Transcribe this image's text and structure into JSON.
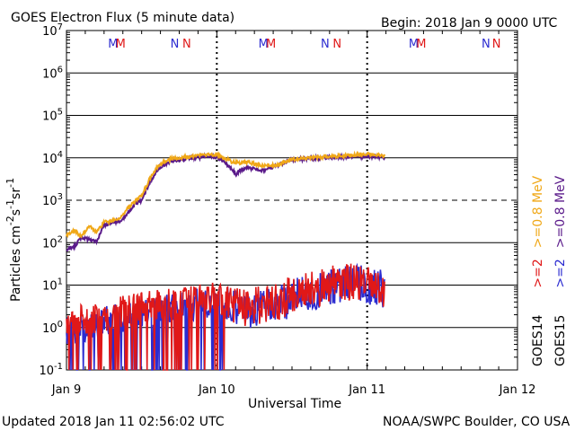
{
  "chart_data": {
    "type": "line",
    "title": "GOES Electron Flux (5 minute data)",
    "begin_label": "Begin: 2018 Jan 9 0000 UTC",
    "xlabel": "Universal Time",
    "ylabel_main": "Particles cm",
    "ylabel_sup1": "-2",
    "ylabel_mid1": "s",
    "ylabel_sup2": "-1",
    "ylabel_mid2": "sr",
    "ylabel_sup3": "-1",
    "yscale": "log",
    "ylim": [
      0.1,
      10000000
    ],
    "xlim_days": [
      0,
      3
    ],
    "x_ticks": [
      {
        "day": 0,
        "label": "Jan 9"
      },
      {
        "day": 1,
        "label": "Jan 10"
      },
      {
        "day": 2,
        "label": "Jan 11"
      },
      {
        "day": 3,
        "label": "Jan 12"
      }
    ],
    "y_ticks": [
      {
        "exp": 7,
        "base": "10",
        "sup": "7"
      },
      {
        "exp": 6,
        "base": "10",
        "sup": "6"
      },
      {
        "exp": 5,
        "base": "10",
        "sup": "5"
      },
      {
        "exp": 4,
        "base": "10",
        "sup": "4"
      },
      {
        "exp": 3,
        "base": "10",
        "sup": "3"
      },
      {
        "exp": 2,
        "base": "10",
        "sup": "2"
      },
      {
        "exp": 1,
        "base": "10",
        "sup": "1"
      },
      {
        "exp": 0,
        "base": "10",
        "sup": "0"
      },
      {
        "exp": -1,
        "base": "10",
        "sup": "-1"
      }
    ],
    "threshold_exp": 3,
    "mn_markers": [
      {
        "day": 0.31,
        "text": "M",
        "color": "#2b2bd0"
      },
      {
        "day": 0.36,
        "text": "M",
        "color": "#e01818"
      },
      {
        "day": 0.72,
        "text": "N",
        "color": "#2b2bd0"
      },
      {
        "day": 0.8,
        "text": "N",
        "color": "#e01818"
      },
      {
        "day": 1.31,
        "text": "M",
        "color": "#2b2bd0"
      },
      {
        "day": 1.36,
        "text": "M",
        "color": "#e01818"
      },
      {
        "day": 1.72,
        "text": "N",
        "color": "#2b2bd0"
      },
      {
        "day": 1.8,
        "text": "N",
        "color": "#e01818"
      },
      {
        "day": 2.31,
        "text": "M",
        "color": "#2b2bd0"
      },
      {
        "day": 2.36,
        "text": "M",
        "color": "#e01818"
      },
      {
        "day": 2.79,
        "text": "N",
        "color": "#2b2bd0"
      },
      {
        "day": 2.86,
        "text": "N",
        "color": "#e01818"
      }
    ],
    "legend": [
      {
        "sat": "GOES14",
        "label": ">=2",
        "color": "#e01818"
      },
      {
        "sat": "GOES14",
        "label": ">=0.8 MeV",
        "color": "#f0a818"
      },
      {
        "sat": "GOES15",
        "label": ">=2",
        "color": "#2b2bd0"
      },
      {
        "sat": "GOES15",
        "label": ">=0.8 MeV",
        "color": "#5a1a8a"
      }
    ],
    "series": [
      {
        "name": "GOES15 >=0.8 MeV",
        "color": "#5a1a8a",
        "x": [
          0,
          0.05,
          0.1,
          0.15,
          0.2,
          0.25,
          0.3,
          0.35,
          0.4,
          0.45,
          0.5,
          0.55,
          0.6,
          0.65,
          0.7,
          0.75,
          0.8,
          0.85,
          0.9,
          0.95,
          1.0,
          1.05,
          1.1,
          1.13,
          1.15,
          1.2,
          1.3,
          1.4,
          1.5,
          1.6,
          1.7,
          1.8,
          1.9,
          2.0,
          2.1,
          2.12
        ],
        "y": [
          70,
          80,
          130,
          120,
          110,
          250,
          300,
          320,
          450,
          800,
          1000,
          2500,
          5000,
          7000,
          8500,
          9000,
          9500,
          10000,
          10500,
          11000,
          10500,
          8000,
          5500,
          3800,
          5000,
          6000,
          5000,
          6500,
          9000,
          9500,
          10000,
          10500,
          10500,
          10800,
          10500,
          9800
        ]
      },
      {
        "name": "GOES14 >=0.8 MeV",
        "color": "#f0a818",
        "x": [
          0,
          0.05,
          0.1,
          0.15,
          0.2,
          0.25,
          0.3,
          0.35,
          0.4,
          0.45,
          0.5,
          0.55,
          0.6,
          0.65,
          0.7,
          0.75,
          0.8,
          0.85,
          0.9,
          0.95,
          1.0,
          1.05,
          1.1,
          1.15,
          1.2,
          1.3,
          1.4,
          1.5,
          1.6,
          1.7,
          1.8,
          1.9,
          2.0,
          2.1,
          2.12
        ],
        "y": [
          150,
          200,
          140,
          250,
          180,
          300,
          320,
          350,
          600,
          900,
          1300,
          3000,
          6000,
          8000,
          9500,
          10000,
          10500,
          11000,
          11500,
          12000,
          11500,
          10000,
          8000,
          7500,
          8000,
          6500,
          6800,
          9000,
          10000,
          10500,
          11000,
          11500,
          12000,
          11500,
          11000
        ]
      },
      {
        "name": "GOES15 >=2 MeV",
        "color": "#2b2bd0",
        "x": [
          0,
          0.1,
          0.2,
          0.3,
          0.4,
          0.5,
          0.6,
          0.7,
          0.8,
          0.9,
          1.0,
          1.1,
          1.2,
          1.3,
          1.4,
          1.5,
          1.6,
          1.7,
          1.8,
          1.9,
          2.0,
          2.1,
          2.12
        ],
        "y": [
          1,
          1.2,
          1.5,
          1.8,
          2.2,
          2.5,
          3,
          3.5,
          4,
          4.5,
          5,
          3,
          2.5,
          3,
          3.5,
          5,
          6,
          8,
          10,
          11,
          10,
          8,
          7
        ]
      },
      {
        "name": "GOES14 >=2 MeV",
        "color": "#e01818",
        "x": [
          0,
          0.1,
          0.2,
          0.3,
          0.4,
          0.5,
          0.6,
          0.7,
          0.8,
          0.9,
          1.0,
          1.1,
          1.2,
          1.3,
          1.4,
          1.5,
          1.6,
          1.7,
          1.8,
          1.9,
          2.0,
          2.1,
          2.12
        ],
        "y": [
          1.5,
          1.8,
          2,
          2.5,
          3,
          3.5,
          4,
          4.5,
          5,
          5.5,
          6,
          3.5,
          3,
          3.5,
          4,
          6,
          7,
          9,
          11,
          12,
          11,
          9,
          8
        ]
      }
    ]
  },
  "footer": {
    "updated": "Updated 2018 Jan 11 02:56:02 UTC",
    "credit": "NOAA/SWPC Boulder, CO USA"
  }
}
